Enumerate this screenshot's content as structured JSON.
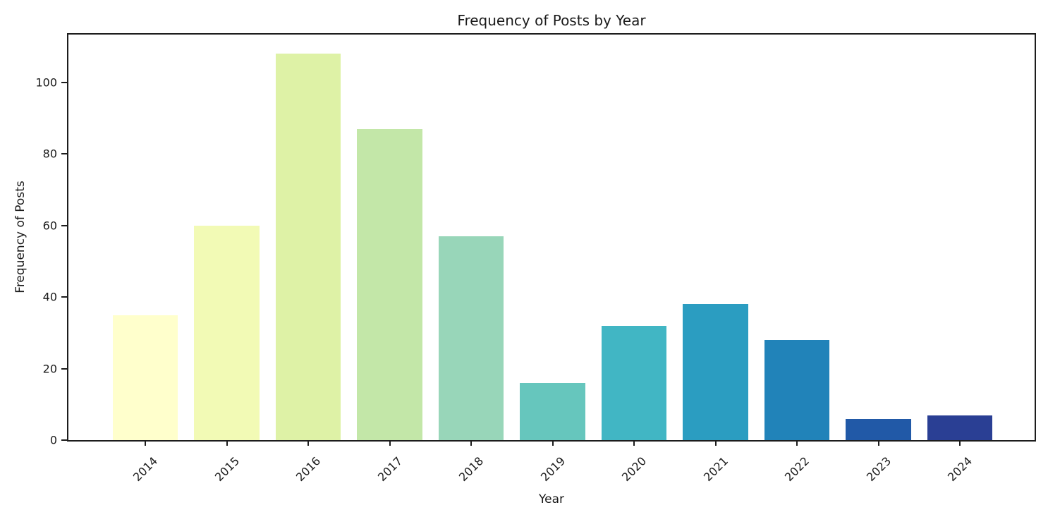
{
  "chart_data": {
    "type": "bar",
    "title": "Frequency of Posts by Year",
    "xlabel": "Year",
    "ylabel": "Frequency of Posts",
    "categories": [
      "2014",
      "2015",
      "2016",
      "2017",
      "2018",
      "2019",
      "2020",
      "2021",
      "2022",
      "2023",
      "2024"
    ],
    "values": [
      35,
      60,
      108,
      87,
      57,
      16,
      32,
      38,
      28,
      6,
      7
    ],
    "bar_colors": [
      "#ffffcc",
      "#f2fab5",
      "#def2a6",
      "#c3e7a8",
      "#98d6b9",
      "#66c6bd",
      "#41b6c4",
      "#2b9dc1",
      "#2183b9",
      "#2159a7",
      "#2a3f94"
    ],
    "palette": "YlGnBu",
    "yticks": [
      0,
      20,
      40,
      60,
      80,
      100
    ],
    "ylim": [
      0,
      113.4
    ],
    "grid": false,
    "legend_position": "none",
    "axis_color": "#1c1c1c",
    "text_color": "#1a1a1a",
    "background_color": "#ffffff"
  }
}
